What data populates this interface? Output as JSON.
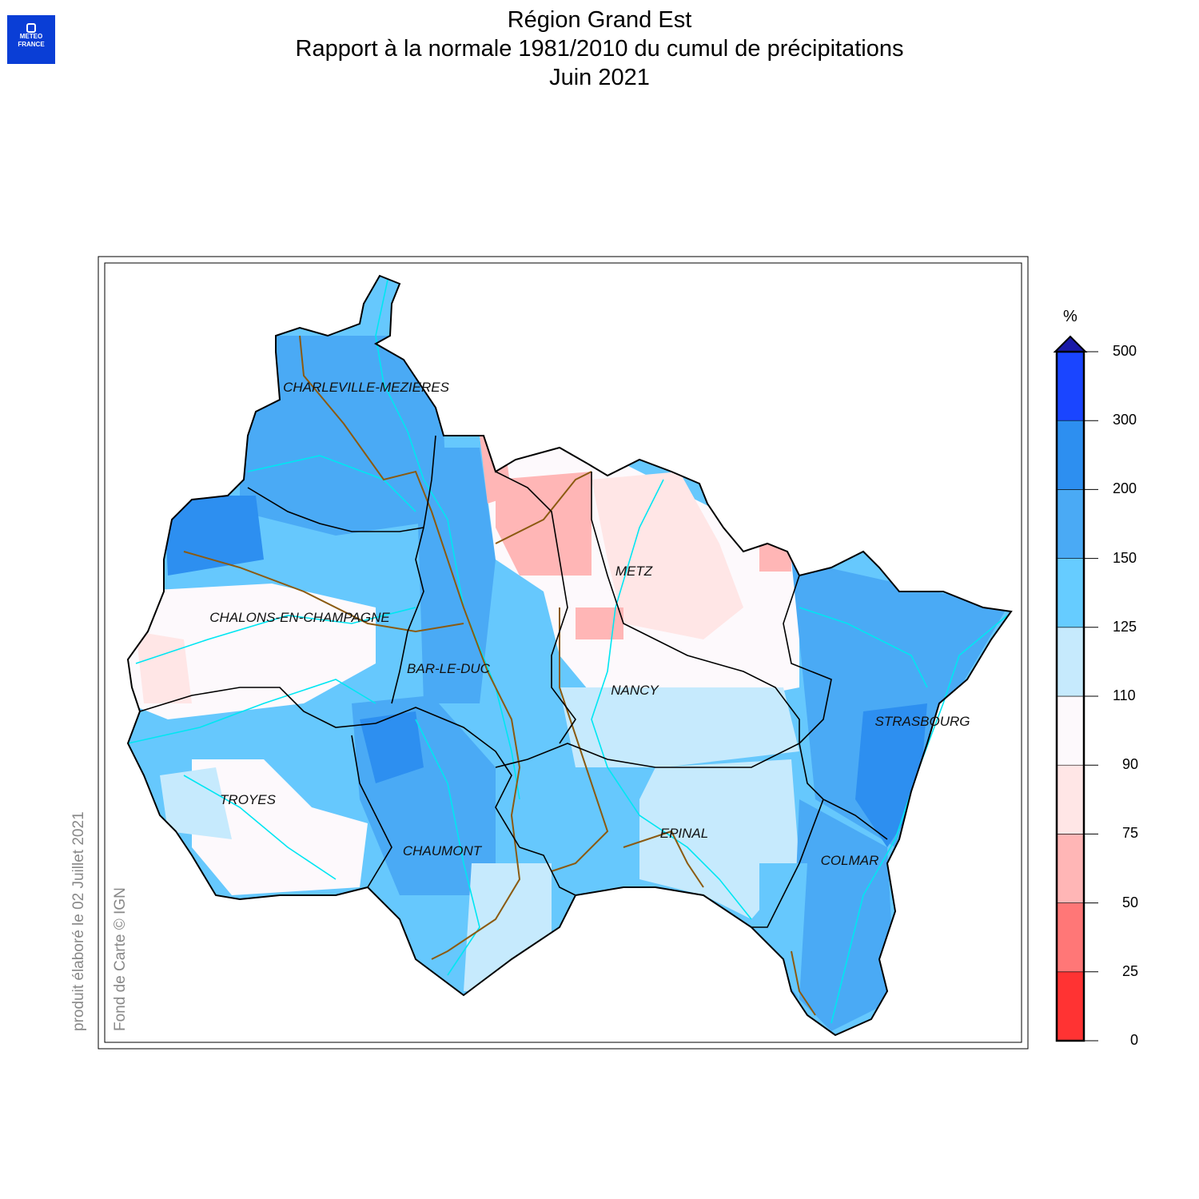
{
  "logo": {
    "line1": "METEO",
    "line2": "FRANCE"
  },
  "title": {
    "line1": "Région Grand Est",
    "line2": "Rapport à la normale 1981/2010 du cumul de précipitations",
    "line3": "Juin 2021"
  },
  "side_text": {
    "produced": "produit élaboré le 02 Juillet 2021",
    "credit": "Fond de Carte © IGN"
  },
  "legend": {
    "unit": "%",
    "ticks": [
      "0",
      "25",
      "50",
      "75",
      "90",
      "110",
      "125",
      "150",
      "200",
      "300",
      "500"
    ],
    "colors": [
      "#ff3333",
      "#ff7777",
      "#ffb6b6",
      "#ffe6e6",
      "#fdf9fc",
      "#c6eafd",
      "#66ccff",
      "#4aaaf5",
      "#2d8ff0",
      "#1a45ff"
    ]
  },
  "cities": [
    {
      "name": "CHARLEVILLE-MEZIERES"
    },
    {
      "name": "METZ"
    },
    {
      "name": "CHALONS-EN-CHAMPAGNE"
    },
    {
      "name": "BAR-LE-DUC"
    },
    {
      "name": "NANCY"
    },
    {
      "name": "STRASBOURG"
    },
    {
      "name": "TROYES"
    },
    {
      "name": "EPINAL"
    },
    {
      "name": "CHAUMONT"
    },
    {
      "name": "COLMAR"
    }
  ]
}
